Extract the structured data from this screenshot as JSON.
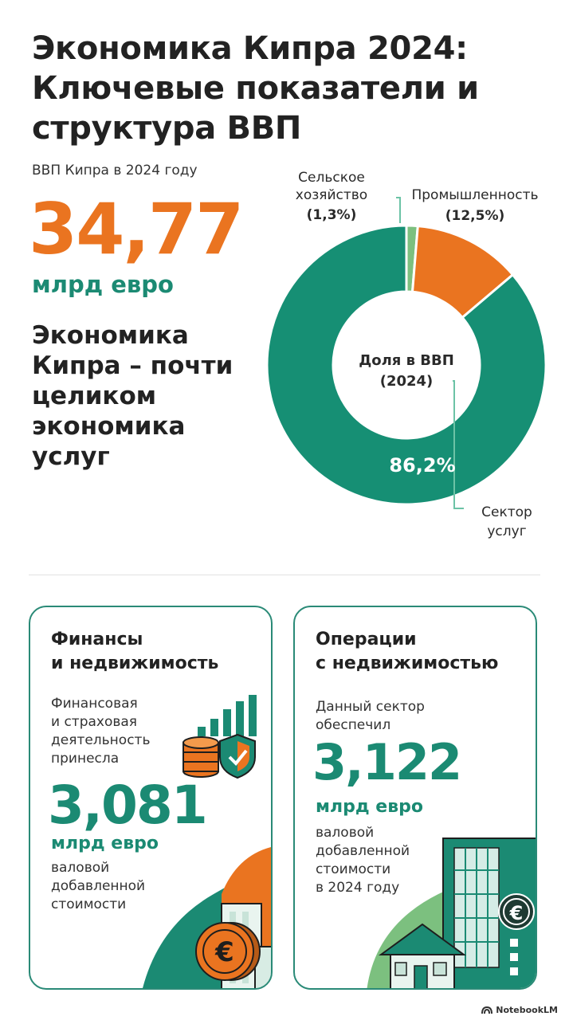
{
  "title": "Экономика Кипра 2024: Ключевые показатели и структура ВВП",
  "gdp": {
    "label": "ВВП Кипра в 2024 году",
    "value": "34,77",
    "unit": "млрд евро"
  },
  "headline": "Экономика Кипра – почти целиком экономика услуг",
  "chart_data": {
    "type": "pie",
    "center_label": [
      "Доля в ВВП",
      "(2024)"
    ],
    "slices": [
      {
        "name": "Сельское хозяйство",
        "name_lines": [
          "Сельское",
          "хозяйство"
        ],
        "value": 1.3,
        "label": "(1,3%)",
        "color": "#7cc07f"
      },
      {
        "name": "Промышленность",
        "name_lines": [
          "Промышленность"
        ],
        "value": 12.5,
        "label": "(12,5%)",
        "color": "#ea7420"
      },
      {
        "name": "Сектор услуг",
        "name_lines": [
          "Сектор",
          "услуг"
        ],
        "value": 86.2,
        "label": "86,2%",
        "color": "#168f74"
      }
    ]
  },
  "cards": [
    {
      "title": "Финансы и недвижимость",
      "title_lines": [
        "Финансы",
        "и недвижимость"
      ],
      "intro": [
        "Финансовая",
        "и страховая",
        "деятельность",
        "принесла"
      ],
      "value": "3,081",
      "unit": "млрд евро",
      "outro": [
        "валовой",
        "добавленной",
        "стоимости"
      ],
      "icons": [
        "bar-chart-icon",
        "coin-stack-icon",
        "shield-check-icon",
        "euro-coin-icon",
        "office-building-icon"
      ]
    },
    {
      "title": "Операции с недвижимостью",
      "title_lines": [
        "Операции",
        "с недвижимостью"
      ],
      "intro": [
        "Данный сектор",
        "обеспечил"
      ],
      "value": "3,122",
      "unit": "млрд евро",
      "outro": [
        "валовой",
        "добавленной",
        "стоимости",
        "в 2024 году"
      ],
      "icons": [
        "office-building-icon",
        "house-icon",
        "euro-sign-icon"
      ]
    }
  ],
  "branding": "NotebookLM",
  "colors": {
    "accent_orange": "#ea7420",
    "accent_green": "#168f74",
    "light_green": "#7cc07f",
    "border": "#2a8a77"
  }
}
